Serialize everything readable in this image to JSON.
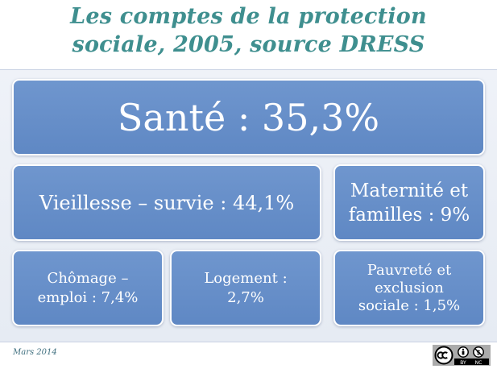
{
  "slide": {
    "title_line1": "Les comptes de la protection",
    "title_line2": "sociale, 2005, source DRESS"
  },
  "blocks": {
    "sante": "Santé : 35,3%",
    "vieillesse": "Vieillesse – survie : 44,1%",
    "maternite_line1": "Maternité et",
    "maternite_line2": "familles : 9%",
    "chomage_line1": "Chômage –",
    "chomage_line2": "emploi : 7,4%",
    "logement_line1": "Logement :",
    "logement_line2": "2,7%",
    "pauvrete_line1": "Pauvreté et",
    "pauvrete_line2": "exclusion",
    "pauvrete_line3": "sociale : 1,5%"
  },
  "footer": {
    "date": "Mars 2014",
    "license_by": "BY",
    "license_nc": "NC"
  },
  "colors": {
    "title": "#3f8f8f",
    "tile": "#6a91cb",
    "background": "#eaeef5"
  },
  "icons": {
    "license": "creative-commons-by-nc"
  }
}
